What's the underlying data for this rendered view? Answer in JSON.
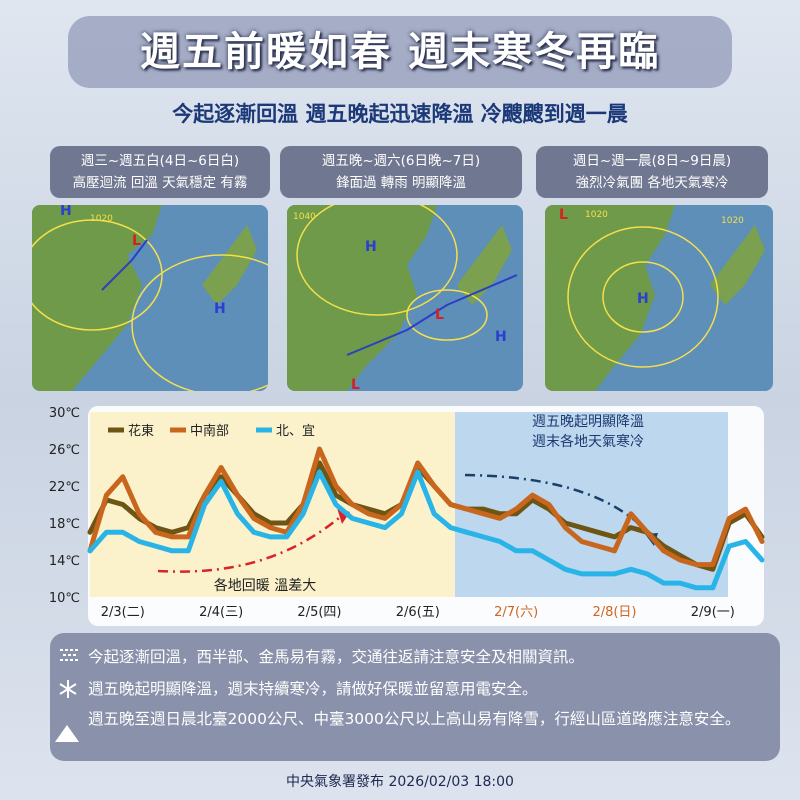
{
  "header": {
    "title": "週五前暖如春  週末寒冬再臨",
    "subtitle": "今起逐漸回溫 週五晚起迅速降溫 冷颼颼到週一晨"
  },
  "panels": [
    {
      "line1": "週三~週五白(4日~6日白)",
      "line2": "高壓迴流 回溫 天氣穩定 有霧",
      "map_labels": [
        "H",
        "H",
        "L",
        "1020"
      ]
    },
    {
      "line1": "週五晚~週六(6日晚~7日)",
      "line2": "鋒面過 轉雨 明顯降溫",
      "map_labels": [
        "H",
        "L",
        "H",
        "L",
        "1040"
      ]
    },
    {
      "line1": "週日~週一晨(8日~9日晨)",
      "line2": "強烈冷氣團 各地天氣寒冷",
      "map_labels": [
        "L",
        "H",
        "1020",
        "1020"
      ]
    }
  ],
  "chart_data": {
    "type": "line",
    "categories": [
      null,
      null,
      "2/3(二)",
      null,
      null,
      null,
      null,
      null,
      "2/4(三)",
      null,
      null,
      null,
      null,
      null,
      "2/5(四)",
      null,
      null,
      null,
      null,
      null,
      "2/6(五)",
      null,
      null,
      null,
      null,
      null,
      "2/7(六)",
      null,
      null,
      null,
      null,
      null,
      "2/8(日)",
      null,
      null,
      null,
      null,
      null,
      "2/9(一)",
      null,
      null,
      null
    ],
    "ylim": [
      10,
      30
    ],
    "yticks": [
      {
        "value": 10,
        "label": "10℃"
      },
      {
        "value": 14,
        "label": "14℃"
      },
      {
        "value": 18,
        "label": "18℃"
      },
      {
        "value": 22,
        "label": "22℃"
      },
      {
        "value": 26,
        "label": "26℃"
      },
      {
        "value": 30,
        "label": "30℃"
      }
    ],
    "series": [
      {
        "name": "花東",
        "color": "#6e5514",
        "values": [
          17,
          20.5,
          20,
          18.5,
          17.5,
          17,
          17.5,
          21,
          23,
          21,
          19,
          18,
          18,
          20,
          24.5,
          21,
          20,
          19.5,
          19,
          20,
          24,
          22,
          20,
          19.5,
          19.5,
          19,
          19,
          20.5,
          19.5,
          18,
          17.5,
          17,
          16.5,
          17.5,
          17,
          15.5,
          14.5,
          13.5,
          13,
          18,
          19,
          16.5
        ]
      },
      {
        "name": "中南部",
        "color": "#c8661e",
        "values": [
          15,
          21,
          23,
          19,
          17,
          16.5,
          16.5,
          21,
          24,
          21,
          18.5,
          17.5,
          17,
          20,
          26,
          22,
          20,
          19,
          18.5,
          20,
          24.5,
          22,
          20,
          19.5,
          19,
          18.5,
          19.5,
          21,
          20,
          17.5,
          16,
          15.5,
          15,
          19,
          17,
          15,
          14,
          13.5,
          13.5,
          18.5,
          19.5,
          16
        ]
      },
      {
        "name": "北、宜",
        "color": "#29b4e8",
        "values": [
          15,
          17,
          17,
          16,
          15.5,
          15,
          15,
          20,
          22.5,
          19,
          17,
          16.5,
          16.5,
          19,
          23.5,
          20,
          18.5,
          18,
          17.5,
          19,
          23.5,
          19,
          17.5,
          17,
          16.5,
          16,
          15,
          15,
          14,
          13,
          12.5,
          12.5,
          12.5,
          13,
          12.5,
          11.5,
          11.5,
          11,
          11,
          15.5,
          16,
          14
        ]
      }
    ],
    "annotations": [
      "週五晚起明顯降溫",
      "週末各地天氣寒冷",
      "各地回暖 溫差大"
    ]
  },
  "notes": [
    "今起逐漸回溫，西半部、金馬易有霧，交通往返請注意安全及相關資訊。",
    "週五晚起明顯降溫，週末持續寒冷，請做好保暖並留意用電安全。",
    "週五晚至週日晨北臺2000公尺、中臺3000公尺以上高山易有降雪，行經山區道路應注意安全。"
  ],
  "footer": "中央氣象署發布 2026/02/03 18:00"
}
